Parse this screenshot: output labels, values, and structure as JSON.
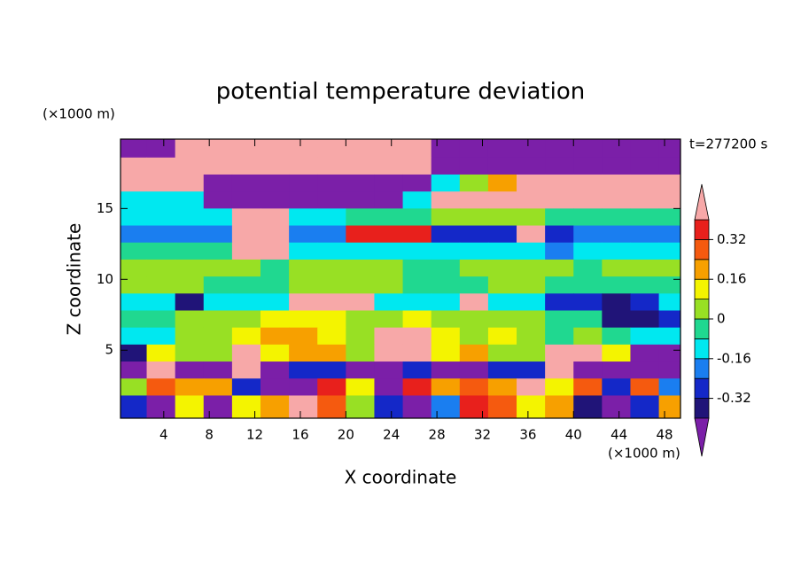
{
  "chart_data": {
    "type": "contour",
    "title": "potential temperature deviation",
    "x_label": "X coordinate",
    "y_label": "Z coordinate",
    "x_unit_label": "(×1000 m)",
    "y_unit_label": "(×1000 m)",
    "time_label": "t=277200 s",
    "xlim": [
      0.2,
      49.4
    ],
    "ylim": [
      0.2,
      19.9
    ],
    "xticks": [
      4,
      8,
      12,
      16,
      20,
      24,
      28,
      32,
      36,
      40,
      44,
      48
    ],
    "yticks": [
      5,
      10,
      15
    ],
    "levels": [
      -0.4,
      -0.32,
      -0.24,
      -0.16,
      -0.08,
      0,
      0.08,
      0.16,
      0.24,
      0.32,
      0.4
    ],
    "colors": [
      "#7b1fa8",
      "#201478",
      "#1428c8",
      "#1a7ef0",
      "#00e8f0",
      "#20d890",
      "#98e024",
      "#f4f400",
      "#f7a000",
      "#f55a0f",
      "#e8201c",
      "#f7a8a8"
    ],
    "colorbar_ticks": [
      -0.32,
      -0.16,
      0,
      0.16,
      0.32
    ],
    "x": [
      1.25,
      3.75,
      6.25,
      8.75,
      11.25,
      13.75,
      16.25,
      18.75,
      21.25,
      23.75,
      26.25,
      28.75,
      31.25,
      33.75,
      36.25,
      38.75,
      41.25,
      43.75,
      46.25,
      48.75
    ],
    "z": [
      19.2,
      18,
      16.8,
      15.6,
      14.4,
      13.2,
      12,
      10.8,
      9.6,
      8.4,
      7.2,
      6,
      4.8,
      3.6,
      2.4,
      1.2
    ],
    "values": [
      [
        -0.45,
        -0.45,
        0.45,
        0.45,
        0.45,
        0.45,
        0.45,
        0.45,
        0.45,
        0.45,
        0.45,
        -0.45,
        -0.45,
        -0.45,
        -0.45,
        -0.45,
        -0.45,
        -0.45,
        -0.45,
        -0.45
      ],
      [
        0.45,
        0.45,
        0.45,
        0.45,
        0.45,
        0.45,
        0.45,
        0.45,
        0.45,
        0.45,
        0.45,
        -0.45,
        -0.45,
        -0.45,
        -0.45,
        -0.45,
        -0.45,
        -0.45,
        -0.45,
        -0.45
      ],
      [
        0.45,
        0.45,
        0.45,
        -0.45,
        -0.45,
        -0.45,
        -0.45,
        -0.45,
        -0.45,
        -0.45,
        -0.45,
        -0.12,
        0.04,
        0.2,
        0.45,
        0.45,
        0.45,
        0.45,
        0.45,
        0.45
      ],
      [
        -0.12,
        -0.12,
        -0.12,
        -0.45,
        -0.45,
        -0.45,
        -0.45,
        -0.45,
        -0.45,
        -0.45,
        -0.12,
        0.45,
        0.45,
        0.45,
        0.45,
        0.45,
        0.45,
        0.45,
        0.45,
        0.45
      ],
      [
        -0.12,
        -0.12,
        -0.12,
        -0.12,
        0.45,
        0.45,
        -0.12,
        -0.12,
        -0.04,
        -0.04,
        -0.04,
        0.04,
        0.04,
        0.04,
        0.04,
        -0.04,
        -0.04,
        -0.04,
        -0.04,
        -0.04
      ],
      [
        -0.2,
        -0.2,
        -0.2,
        -0.2,
        0.45,
        0.45,
        -0.2,
        -0.2,
        0.36,
        0.36,
        0.36,
        -0.28,
        -0.28,
        -0.28,
        0.45,
        -0.28,
        -0.2,
        -0.2,
        -0.2,
        -0.2
      ],
      [
        -0.04,
        -0.04,
        -0.04,
        -0.04,
        0.45,
        0.45,
        -0.12,
        -0.12,
        -0.12,
        -0.12,
        -0.12,
        -0.12,
        -0.12,
        -0.12,
        -0.12,
        -0.2,
        -0.12,
        -0.12,
        -0.12,
        -0.12
      ],
      [
        0.04,
        0.04,
        0.04,
        0.04,
        0.04,
        -0.04,
        0.04,
        0.04,
        0.04,
        0.04,
        -0.04,
        -0.04,
        0.04,
        0.04,
        0.04,
        0.04,
        -0.04,
        0.04,
        0.04,
        0.04
      ],
      [
        0.04,
        0.04,
        0.04,
        -0.04,
        -0.04,
        -0.04,
        0.04,
        0.04,
        0.04,
        0.04,
        -0.04,
        -0.04,
        -0.04,
        0.04,
        0.04,
        -0.04,
        -0.04,
        -0.04,
        -0.04,
        -0.04
      ],
      [
        -0.12,
        -0.12,
        -0.36,
        -0.12,
        -0.12,
        -0.12,
        0.45,
        0.45,
        0.45,
        -0.12,
        -0.12,
        -0.12,
        0.45,
        -0.12,
        -0.12,
        -0.28,
        -0.28,
        -0.36,
        -0.28,
        -0.12
      ],
      [
        -0.04,
        -0.04,
        0.04,
        0.04,
        0.04,
        0.12,
        0.12,
        0.12,
        0.04,
        0.04,
        0.12,
        0.04,
        0.04,
        0.04,
        0.04,
        -0.04,
        -0.04,
        -0.36,
        -0.36,
        -0.28
      ],
      [
        -0.12,
        -0.12,
        0.04,
        0.04,
        0.12,
        0.2,
        0.2,
        0.12,
        0.04,
        0.45,
        0.45,
        0.12,
        0.04,
        0.12,
        0.04,
        -0.04,
        0.04,
        -0.04,
        -0.12,
        -0.12
      ],
      [
        -0.36,
        0.12,
        0.04,
        0.04,
        0.45,
        0.12,
        0.2,
        0.2,
        0.04,
        0.45,
        0.45,
        0.12,
        0.2,
        0.04,
        0.04,
        0.45,
        0.45,
        0.12,
        -0.45,
        -0.45
      ],
      [
        -0.45,
        0.45,
        -0.45,
        -0.45,
        0.45,
        -0.45,
        -0.28,
        -0.28,
        -0.45,
        -0.45,
        -0.28,
        -0.45,
        -0.45,
        -0.28,
        -0.28,
        0.45,
        -0.45,
        -0.45,
        -0.45,
        -0.45
      ],
      [
        0.04,
        0.28,
        0.2,
        0.2,
        -0.28,
        -0.45,
        -0.45,
        0.36,
        0.12,
        -0.45,
        0.36,
        0.2,
        0.28,
        0.2,
        0.45,
        0.12,
        0.28,
        -0.28,
        0.28,
        -0.2
      ],
      [
        -0.28,
        -0.45,
        0.12,
        -0.45,
        0.12,
        0.2,
        0.45,
        0.28,
        0.04,
        -0.28,
        -0.45,
        -0.2,
        0.36,
        0.28,
        0.12,
        0.2,
        -0.36,
        -0.45,
        -0.28,
        0.2
      ]
    ]
  }
}
